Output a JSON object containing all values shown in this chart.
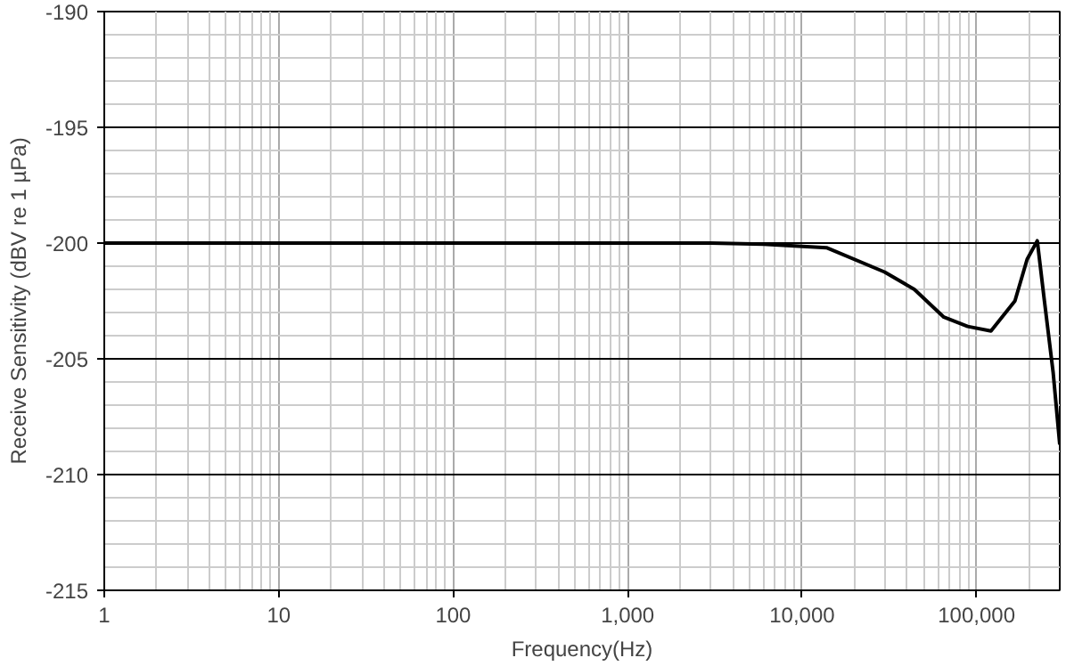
{
  "chart_data": {
    "type": "line",
    "xlabel": "Frequency(Hz)",
    "ylabel": "Receive Sensitivity (dBV re 1 µPa)",
    "log": "x",
    "grid": true,
    "marker": "none",
    "line_style": "solid",
    "xlim": [
      1,
      300000
    ],
    "ylim": [
      -215,
      -190
    ],
    "xticks": [
      1,
      10,
      100,
      {
        "value": 1000,
        "label": "1,000"
      },
      {
        "value": 10000,
        "label": "10,000"
      },
      {
        "value": 100000,
        "label": "100,000"
      }
    ],
    "yticks": [
      -215,
      -210,
      -205,
      -200,
      -195,
      -190
    ],
    "series": [
      {
        "color": "#000000",
        "x": [
          1,
          10,
          100,
          1000,
          3000,
          6000,
          13800,
          29700,
          44000,
          65000,
          89000,
          121000,
          166000,
          195000,
          223000,
          245000,
          275000,
          300000
        ],
        "values": [
          -200,
          -200,
          -200,
          -200,
          -200,
          -200.05,
          -200.2,
          -201.25,
          -202.0,
          -203.2,
          -203.6,
          -203.8,
          -202.5,
          -200.7,
          -199.9,
          -202.5,
          -205.6,
          -208.7
        ]
      }
    ]
  }
}
